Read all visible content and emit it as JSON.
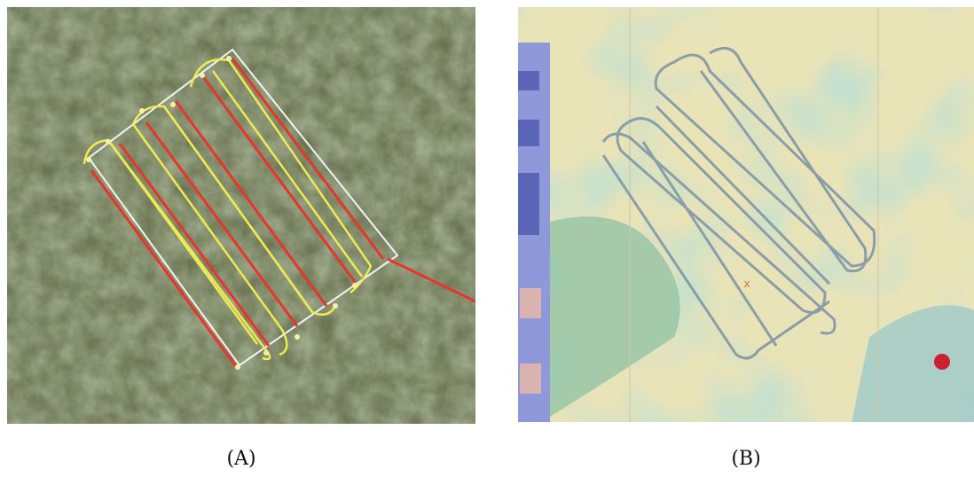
{
  "panels": [
    {
      "caption": "(A)"
    },
    {
      "caption": "(B)"
    }
  ]
}
